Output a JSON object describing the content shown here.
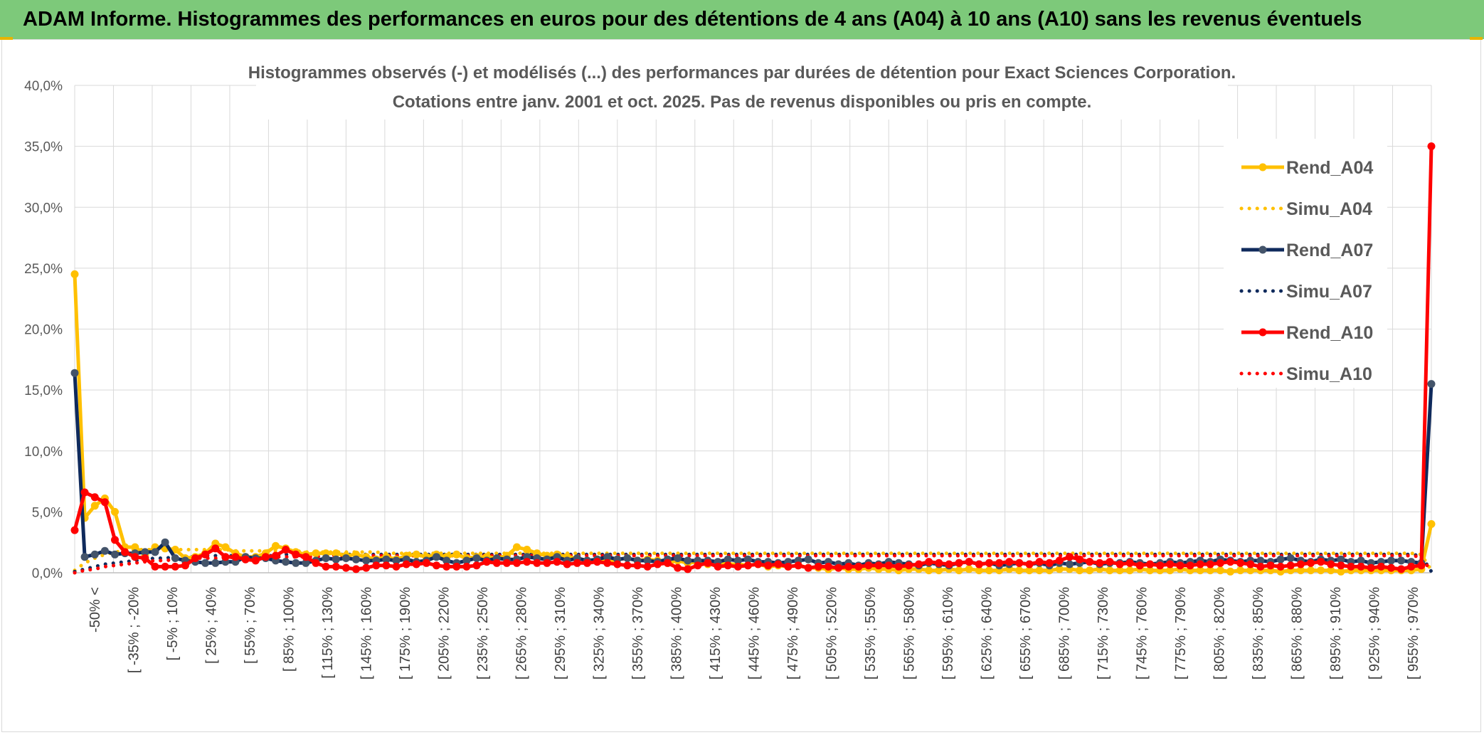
{
  "header": {
    "banner_title": "ADAM Informe. Histogrammes des performances en euros pour des détentions de 4 ans (A04) à 10 ans (A10) sans les revenus éventuels"
  },
  "colors": {
    "banner": "#7dc97a",
    "rend_a04": "#ffc000",
    "rend_a07": "#0f2a5c",
    "rend_a10": "#ff0000",
    "marker_a07": "#44546a"
  },
  "chart_data": {
    "type": "line",
    "title": "Histogrammes observés (-) et modélisés (...) des performances par durées de détention pour Exact Sciences Corporation.",
    "subtitle": "Cotations entre janv. 2001 et oct. 2025. Pas de revenus disponibles ou pris en compte.",
    "xlabel": "",
    "ylabel": "",
    "ylim": [
      0,
      40
    ],
    "y_ticks": [
      "0,0%",
      "5,0%",
      "10,0%",
      "15,0%",
      "20,0%",
      "25,0%",
      "30,0%",
      "35,0%",
      "40,0%"
    ],
    "x_tick_labels": [
      "-50% <",
      "[ -35% ; -20%",
      "[ -5% ; 10%",
      "[ 25% ; 40%",
      "[ 55% ; 70%",
      "[ 85% ; 100%",
      "[ 115% ; 130%",
      "[ 145% ; 160%",
      "[ 175% ; 190%",
      "[ 205% ; 220%",
      "[ 235% ; 250%",
      "[ 265% ; 280%",
      "[ 295% ; 310%",
      "[ 325% ; 340%",
      "[ 355% ; 370%",
      "[ 385% ; 400%",
      "[ 415% ; 430%",
      "[ 445% ; 460%",
      "[ 475% ; 490%",
      "[ 505% ; 520%",
      "[ 535% ; 550%",
      "[ 565% ; 580%",
      "[ 595% ; 610%",
      "[ 625% ; 640%",
      "[ 655% ; 670%",
      "[ 685% ; 700%",
      "[ 715% ; 730%",
      "[ 745% ; 760%",
      "[ 775% ; 790%",
      "[ 805% ; 820%",
      "[ 835% ; 850%",
      "[ 865% ; 880%",
      "[ 895% ; 910%",
      "[ 925% ; 940%",
      "[ 955% ; 970%"
    ],
    "grid": true,
    "legend_position": "right",
    "series": [
      {
        "name": "Rend_A04",
        "style": "solid",
        "color": "#ffc000",
        "values": [
          24.5,
          4.5,
          5.5,
          6.1,
          5.0,
          2.1,
          2.1,
          1.5,
          2.1,
          2.0,
          1.9,
          1.2,
          1.3,
          1.6,
          2.4,
          2.1,
          1.6,
          1.3,
          1.3,
          1.6,
          2.2,
          2.0,
          1.7,
          1.5,
          1.6,
          1.6,
          1.6,
          1.4,
          1.5,
          1.3,
          1.1,
          1.3,
          1.1,
          1.4,
          1.5,
          1.3,
          1.5,
          1.3,
          1.5,
          1.2,
          1.3,
          1.3,
          1.2,
          1.4,
          2.1,
          1.9,
          1.6,
          1.4,
          1.5,
          1.3,
          1.2,
          1.0,
          1.1,
          0.9,
          1.1,
          1.2,
          1.0,
          1.1,
          1.0,
          0.8,
          1.0,
          0.8,
          0.9,
          0.7,
          0.8,
          0.7,
          0.7,
          0.6,
          0.7,
          0.5,
          0.6,
          0.5,
          0.6,
          0.4,
          0.4,
          0.3,
          0.4,
          0.3,
          0.3,
          0.4,
          0.3,
          0.3,
          0.2,
          0.3,
          0.3,
          0.2,
          0.2,
          0.3,
          0.2,
          0.3,
          0.2,
          0.2,
          0.2,
          0.3,
          0.2,
          0.2,
          0.2,
          0.2,
          0.3,
          0.3,
          0.2,
          0.2,
          0.3,
          0.2,
          0.2,
          0.2,
          0.3,
          0.2,
          0.2,
          0.2,
          0.3,
          0.2,
          0.2,
          0.2,
          0.2,
          0.1,
          0.2,
          0.2,
          0.2,
          0.2,
          0.1,
          0.2,
          0.2,
          0.2,
          0.2,
          0.2,
          0.1,
          0.2,
          0.2,
          0.2,
          0.2,
          0.2,
          0.2,
          0.2,
          0.3,
          4.0
        ]
      },
      {
        "name": "Simu_A04",
        "style": "dotted",
        "color": "#ffc000",
        "values": [
          0.2,
          0.8,
          1.2,
          1.5,
          1.7,
          1.8,
          1.9,
          1.9,
          1.9,
          1.9,
          1.9,
          1.9,
          1.9,
          1.9,
          1.9,
          1.9,
          1.8,
          1.8,
          1.8,
          1.8,
          1.8,
          1.8,
          1.8,
          1.7,
          1.7,
          1.7,
          1.7,
          1.7,
          1.7,
          1.7,
          1.7,
          1.6,
          1.6,
          1.6,
          1.6,
          1.6,
          1.6,
          1.6,
          1.6,
          1.6,
          1.6,
          1.6,
          1.6,
          1.6,
          1.6,
          1.6,
          1.6,
          1.6,
          1.6,
          1.6,
          1.6,
          1.6,
          1.6,
          1.6,
          1.6,
          1.6,
          1.6,
          1.6,
          1.6,
          1.6,
          1.6,
          1.6,
          1.6,
          1.6,
          1.6,
          1.6,
          1.6,
          1.6,
          1.6,
          1.6,
          1.6,
          1.6,
          1.6,
          1.6,
          1.6,
          1.6,
          1.6,
          1.6,
          1.6,
          1.6,
          1.6,
          1.6,
          1.6,
          1.6,
          1.6,
          1.6,
          1.6,
          1.6,
          1.6,
          1.6,
          1.6,
          1.6,
          1.6,
          1.6,
          1.6,
          1.6,
          1.6,
          1.6,
          1.6,
          1.6,
          1.6,
          1.6,
          1.6,
          1.6,
          1.6,
          1.6,
          1.6,
          1.6,
          1.6,
          1.6,
          1.6,
          1.6,
          1.6,
          1.6,
          1.6,
          1.6,
          1.6,
          1.6,
          1.6,
          1.6,
          1.6,
          1.6,
          1.6,
          1.6,
          1.6,
          1.6,
          1.6,
          1.6,
          1.6,
          1.6,
          1.6,
          1.6,
          1.6,
          1.6,
          1.5,
          0.2
        ]
      },
      {
        "name": "Rend_A07",
        "style": "solid",
        "color": "#0f2a5c",
        "values": [
          16.4,
          1.3,
          1.5,
          1.8,
          1.5,
          1.6,
          1.6,
          1.7,
          1.7,
          2.5,
          1.2,
          1.0,
          0.9,
          0.8,
          0.8,
          0.9,
          0.9,
          1.3,
          1.2,
          1.2,
          1.0,
          0.9,
          0.8,
          0.8,
          1.0,
          1.2,
          1.1,
          1.2,
          1.1,
          1.0,
          1.0,
          1.1,
          1.0,
          1.1,
          0.9,
          1.0,
          1.3,
          1.0,
          0.8,
          1.0,
          1.2,
          1.0,
          1.2,
          1.1,
          1.1,
          1.3,
          1.2,
          1.1,
          1.3,
          1.0,
          1.2,
          1.0,
          1.1,
          1.3,
          1.1,
          1.2,
          1.0,
          1.0,
          0.9,
          1.1,
          1.2,
          1.0,
          1.0,
          1.0,
          0.9,
          1.1,
          1.0,
          1.1,
          0.9,
          0.9,
          0.8,
          0.9,
          1.0,
          1.1,
          0.8,
          0.9,
          0.7,
          0.8,
          0.6,
          0.8,
          0.7,
          0.9,
          0.8,
          0.7,
          0.6,
          0.8,
          0.7,
          0.6,
          0.8,
          0.9,
          0.7,
          0.8,
          0.6,
          0.7,
          0.8,
          0.7,
          0.8,
          0.6,
          0.8,
          0.7,
          0.8,
          0.9,
          0.7,
          0.8,
          0.8,
          0.9,
          0.8,
          0.7,
          0.8,
          0.9,
          0.8,
          0.9,
          1.0,
          0.9,
          1.1,
          1.0,
          0.9,
          1.0,
          1.0,
          0.9,
          1.1,
          1.2,
          1.0,
          0.9,
          1.1,
          1.0,
          1.1,
          0.9,
          1.0,
          0.8,
          0.9,
          1.0,
          1.0,
          0.9,
          0.8,
          15.5
        ]
      },
      {
        "name": "Simu_A07",
        "style": "dotted",
        "color": "#0f2a5c",
        "values": [
          0.1,
          0.3,
          0.5,
          0.7,
          0.8,
          0.9,
          1.0,
          1.1,
          1.2,
          1.2,
          1.3,
          1.3,
          1.3,
          1.4,
          1.4,
          1.4,
          1.4,
          1.4,
          1.4,
          1.4,
          1.4,
          1.5,
          1.5,
          1.5,
          1.5,
          1.5,
          1.5,
          1.5,
          1.5,
          1.5,
          1.5,
          1.5,
          1.5,
          1.5,
          1.5,
          1.5,
          1.5,
          1.5,
          1.5,
          1.5,
          1.5,
          1.5,
          1.5,
          1.5,
          1.5,
          1.5,
          1.5,
          1.5,
          1.5,
          1.5,
          1.5,
          1.5,
          1.5,
          1.5,
          1.5,
          1.5,
          1.5,
          1.5,
          1.5,
          1.5,
          1.5,
          1.5,
          1.5,
          1.5,
          1.5,
          1.5,
          1.5,
          1.5,
          1.5,
          1.5,
          1.5,
          1.5,
          1.5,
          1.5,
          1.5,
          1.5,
          1.5,
          1.5,
          1.5,
          1.5,
          1.5,
          1.5,
          1.5,
          1.5,
          1.5,
          1.5,
          1.5,
          1.5,
          1.5,
          1.5,
          1.5,
          1.5,
          1.5,
          1.5,
          1.5,
          1.5,
          1.5,
          1.5,
          1.5,
          1.5,
          1.5,
          1.5,
          1.5,
          1.5,
          1.5,
          1.5,
          1.5,
          1.5,
          1.5,
          1.5,
          1.5,
          1.5,
          1.5,
          1.5,
          1.5,
          1.5,
          1.5,
          1.5,
          1.5,
          1.5,
          1.5,
          1.5,
          1.5,
          1.5,
          1.5,
          1.5,
          1.5,
          1.5,
          1.5,
          1.5,
          1.5,
          1.5,
          1.5,
          1.5,
          1.4,
          0.1
        ]
      },
      {
        "name": "Rend_A10",
        "style": "solid",
        "color": "#ff0000",
        "values": [
          3.5,
          6.6,
          6.2,
          5.8,
          2.7,
          1.7,
          1.3,
          1.2,
          0.5,
          0.5,
          0.5,
          0.6,
          1.2,
          1.5,
          2.0,
          1.3,
          1.3,
          1.1,
          1.0,
          1.3,
          1.4,
          1.9,
          1.5,
          1.3,
          0.8,
          0.5,
          0.5,
          0.4,
          0.3,
          0.4,
          0.6,
          0.6,
          0.5,
          0.7,
          0.7,
          0.8,
          0.6,
          0.5,
          0.5,
          0.5,
          0.6,
          0.9,
          0.8,
          0.8,
          0.8,
          0.9,
          0.8,
          0.8,
          0.9,
          0.7,
          0.8,
          0.8,
          0.9,
          0.8,
          0.7,
          0.6,
          0.6,
          0.5,
          0.7,
          0.8,
          0.4,
          0.3,
          0.6,
          0.8,
          0.5,
          0.6,
          0.5,
          0.6,
          0.7,
          0.6,
          0.7,
          0.5,
          0.6,
          0.4,
          0.5,
          0.5,
          0.4,
          0.5,
          0.5,
          0.6,
          0.6,
          0.6,
          0.5,
          0.6,
          0.7,
          0.9,
          0.8,
          0.7,
          0.8,
          0.9,
          0.7,
          0.8,
          0.8,
          0.9,
          0.8,
          0.7,
          0.9,
          0.8,
          1.0,
          1.3,
          1.1,
          0.9,
          0.8,
          0.9,
          0.7,
          0.8,
          0.6,
          0.7,
          0.6,
          0.7,
          0.6,
          0.6,
          0.7,
          0.7,
          0.8,
          0.9,
          0.8,
          0.7,
          0.5,
          0.6,
          0.5,
          0.6,
          0.7,
          0.8,
          0.9,
          0.7,
          0.6,
          0.5,
          0.5,
          0.4,
          0.5,
          0.4,
          0.3,
          0.5,
          0.6,
          35.0
        ]
      },
      {
        "name": "Simu_A10",
        "style": "dotted",
        "color": "#ff0000",
        "values": [
          0.0,
          0.2,
          0.3,
          0.5,
          0.6,
          0.7,
          0.8,
          0.9,
          1.0,
          1.0,
          1.1,
          1.1,
          1.2,
          1.2,
          1.2,
          1.2,
          1.3,
          1.3,
          1.3,
          1.3,
          1.3,
          1.3,
          1.3,
          1.3,
          1.3,
          1.4,
          1.4,
          1.4,
          1.4,
          1.4,
          1.4,
          1.4,
          1.4,
          1.4,
          1.4,
          1.4,
          1.4,
          1.4,
          1.4,
          1.4,
          1.4,
          1.4,
          1.4,
          1.4,
          1.4,
          1.4,
          1.4,
          1.4,
          1.4,
          1.4,
          1.4,
          1.4,
          1.4,
          1.4,
          1.4,
          1.4,
          1.4,
          1.4,
          1.4,
          1.4,
          1.4,
          1.4,
          1.4,
          1.4,
          1.4,
          1.4,
          1.4,
          1.4,
          1.4,
          1.4,
          1.4,
          1.4,
          1.4,
          1.4,
          1.4,
          1.4,
          1.4,
          1.4,
          1.4,
          1.4,
          1.4,
          1.4,
          1.4,
          1.4,
          1.4,
          1.4,
          1.4,
          1.4,
          1.4,
          1.4,
          1.4,
          1.4,
          1.4,
          1.4,
          1.4,
          1.4,
          1.4,
          1.4,
          1.4,
          1.4,
          1.4,
          1.4,
          1.4,
          1.4,
          1.4,
          1.4,
          1.4,
          1.4,
          1.4,
          1.4,
          1.4,
          1.4,
          1.4,
          1.4,
          1.4,
          1.4,
          1.4,
          1.4,
          1.4,
          1.4,
          1.4,
          1.4,
          1.4,
          1.4,
          1.4,
          1.4,
          1.4,
          1.4,
          1.4,
          1.4,
          1.4,
          1.4,
          1.4,
          1.4,
          1.3,
          0.1
        ]
      }
    ]
  }
}
